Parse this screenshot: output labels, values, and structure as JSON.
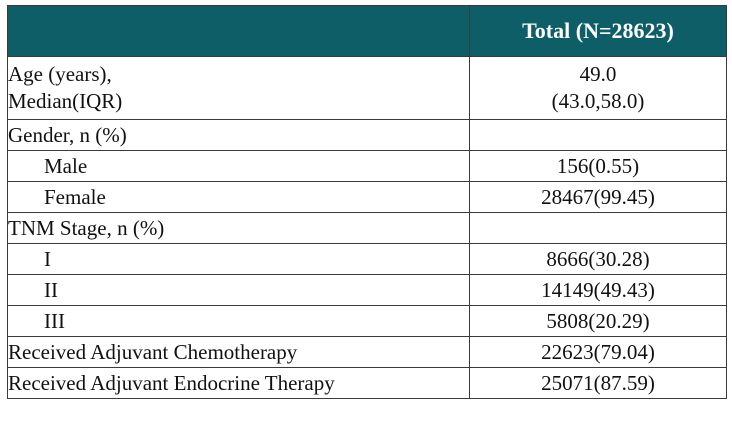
{
  "header": {
    "col1": "",
    "col2": "Total (N=28623)"
  },
  "rows": [
    {
      "label_line1": "Age (years),",
      "label_line2": "Median(IQR)",
      "value_line1": "49.0",
      "value_line2": "(43.0,58.0)"
    },
    {
      "label": "Gender, n (%)",
      "value": ""
    },
    {
      "label": "Male",
      "value": "156(0.55)"
    },
    {
      "label": "Female",
      "value": "28467(99.45)"
    },
    {
      "label": "TNM Stage, n (%)",
      "value": ""
    },
    {
      "label": "I",
      "value": "8666(30.28)"
    },
    {
      "label": "II",
      "value": "14149(49.43)"
    },
    {
      "label": "III",
      "value": "5808(20.29)"
    },
    {
      "label": "Received Adjuvant Chemotherapy",
      "value": "22623(79.04)"
    },
    {
      "label": "Received Adjuvant Endocrine Therapy",
      "value": "25071(87.59)"
    }
  ],
  "colors": {
    "header_bg": "#0e5e68",
    "header_text": "#ffffff",
    "border": "#3a3a3a"
  }
}
